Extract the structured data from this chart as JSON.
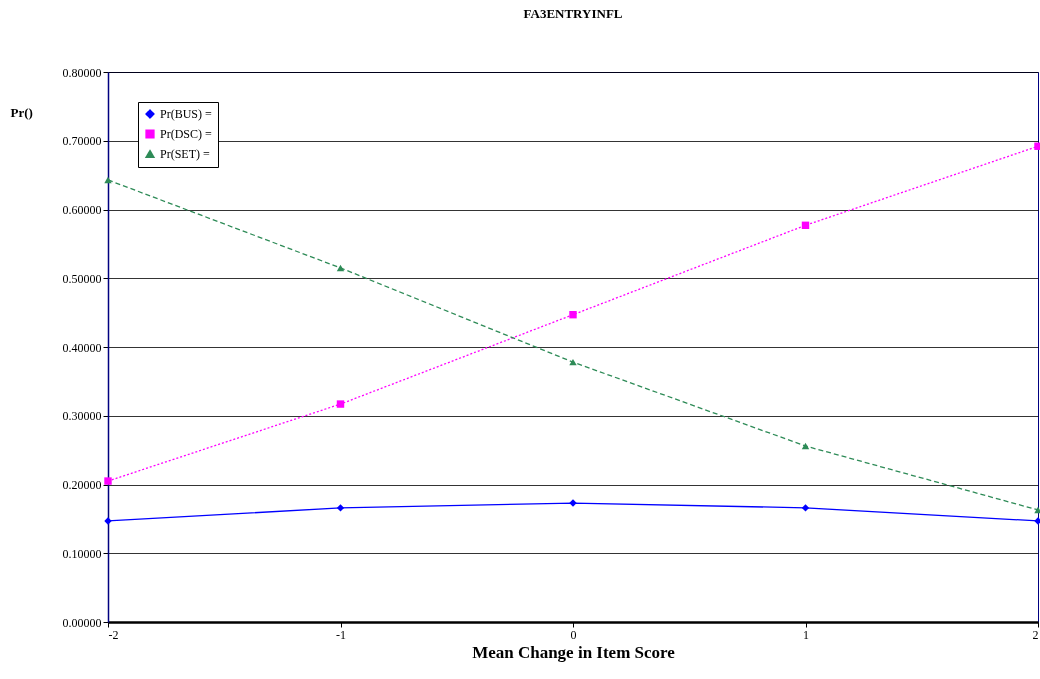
{
  "chart_data": {
    "type": "line",
    "title": "FA3ENTRYINFL",
    "xlabel": "Mean Change in Item Score",
    "ylabel": "Pr()",
    "x": [
      -2,
      -1,
      0,
      1,
      2
    ],
    "series": [
      {
        "name": "Pr(BUS) =",
        "color": "#0000ff",
        "marker": "diamond",
        "line_style": "solid",
        "values": [
          0.147,
          0.166,
          0.173,
          0.166,
          0.147
        ]
      },
      {
        "name": "Pr(DSC) =",
        "color": "#ff00ff",
        "marker": "square",
        "line_style": "dotted",
        "values": [
          0.205,
          0.317,
          0.447,
          0.577,
          0.692
        ]
      },
      {
        "name": "Pr(SET) =",
        "color": "#2e8b57",
        "marker": "triangle",
        "line_style": "dashed",
        "values": [
          0.643,
          0.515,
          0.378,
          0.256,
          0.163
        ]
      }
    ],
    "xlim": [
      -2,
      2
    ],
    "xticks": [
      -2,
      -1,
      0,
      1,
      2
    ],
    "ylim": [
      0,
      0.8
    ],
    "yticks": [
      {
        "value": 0,
        "label": "0.00000"
      },
      {
        "value": 0.1,
        "label": "0.10000"
      },
      {
        "value": 0.2,
        "label": "0.20000"
      },
      {
        "value": 0.3,
        "label": "0.30000"
      },
      {
        "value": 0.4,
        "label": "0.40000"
      },
      {
        "value": 0.5,
        "label": "0.50000"
      },
      {
        "value": 0.6,
        "label": "0.60000"
      },
      {
        "value": 0.7,
        "label": "0.70000"
      },
      {
        "value": 0.8,
        "label": "0.80000"
      }
    ],
    "grid": "y",
    "legend": "top left"
  }
}
